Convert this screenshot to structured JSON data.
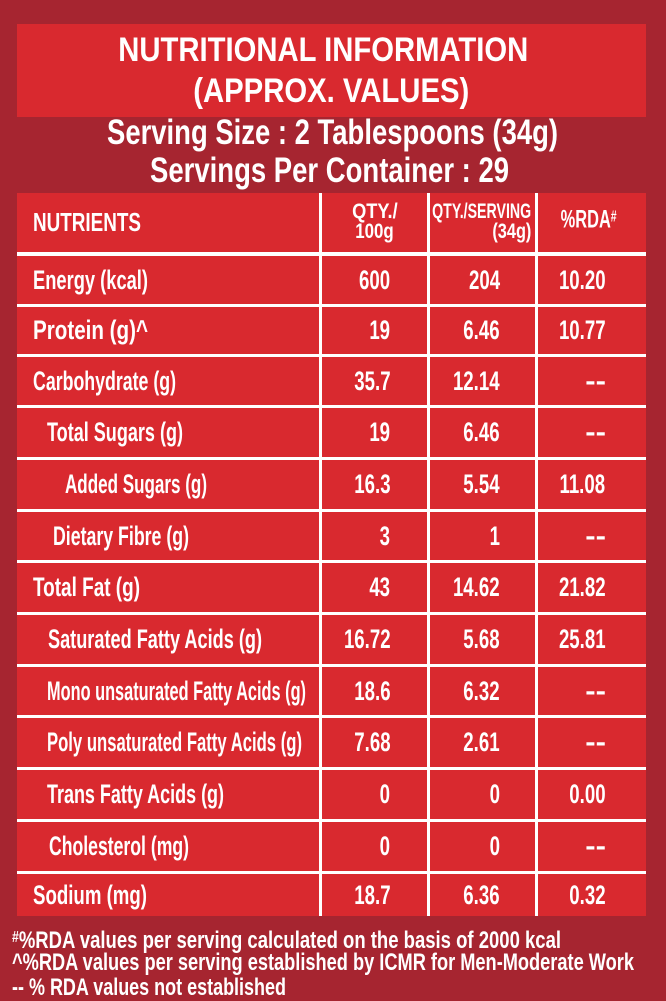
{
  "colors": {
    "page_background": "#A62530",
    "panel_red": "#D9292F",
    "text": "#FFFFFF"
  },
  "header": {
    "title_line1": "NUTRITIONAL INFORMATION",
    "title_line2": "(APPROX. VALUES)",
    "serving_size": "Serving Size : 2 Tablespoons (34g)",
    "servings_per_container": "Servings Per Container : 29"
  },
  "table": {
    "col_nutrients": "NUTRIENTS",
    "col_qty100_line1": "QTY./",
    "col_qty100_line2": "100g",
    "col_qtyserving_line1": "QTY./SERVING",
    "col_qtyserving_line2": "(34g)",
    "col_rda": "%RDA",
    "col_rda_sup": "#",
    "rows": [
      {
        "label": "Energy (kcal)",
        "indent": 0,
        "qty_100g": "600",
        "qty_serving": "204",
        "rda": "10.20"
      },
      {
        "label": "Protein (g)^",
        "indent": 0,
        "qty_100g": "19",
        "qty_serving": "6.46",
        "rda": "10.77"
      },
      {
        "label": "Carbohydrate (g)",
        "indent": 0,
        "qty_100g": "35.7",
        "qty_serving": "12.14",
        "rda": "--"
      },
      {
        "label": "Total Sugars (g)",
        "indent": 1,
        "qty_100g": "19",
        "qty_serving": "6.46",
        "rda": "--"
      },
      {
        "label": "Added Sugars (g)",
        "indent": 2,
        "qty_100g": "16.3",
        "qty_serving": "5.54",
        "rda": "11.08"
      },
      {
        "label": "Dietary Fibre (g)",
        "indent": 1,
        "qty_100g": "3",
        "qty_serving": "1",
        "rda": "--"
      },
      {
        "label": "Total Fat (g)",
        "indent": 0,
        "qty_100g": "43",
        "qty_serving": "14.62",
        "rda": "21.82"
      },
      {
        "label": "Saturated Fatty Acids (g)",
        "indent": 1,
        "qty_100g": "16.72",
        "qty_serving": "5.68",
        "rda": "25.81"
      },
      {
        "label": "Mono unsaturated Fatty Acids (g)",
        "indent": 1,
        "qty_100g": "18.6",
        "qty_serving": "6.32",
        "rda": "--"
      },
      {
        "label": "Poly unsaturated Fatty Acids (g)",
        "indent": 1,
        "qty_100g": "7.68",
        "qty_serving": "2.61",
        "rda": "--"
      },
      {
        "label": "Trans Fatty Acids (g)",
        "indent": 1,
        "qty_100g": "0",
        "qty_serving": "0",
        "rda": "0.00"
      },
      {
        "label": "Cholesterol (mg)",
        "indent": 1,
        "qty_100g": "0",
        "qty_serving": "0",
        "rda": "--"
      },
      {
        "label": "Sodium (mg)",
        "indent": 0,
        "qty_100g": "18.7",
        "qty_serving": "6.36",
        "rda": "0.32"
      }
    ]
  },
  "footnotes": {
    "note1_sup": "#",
    "note1_text": "%RDA values per serving calculated on the basis of 2000 kcal",
    "note2": "^%RDA values per serving established by ICMR for Men-Moderate Work",
    "note3": "-- % RDA values not established"
  }
}
